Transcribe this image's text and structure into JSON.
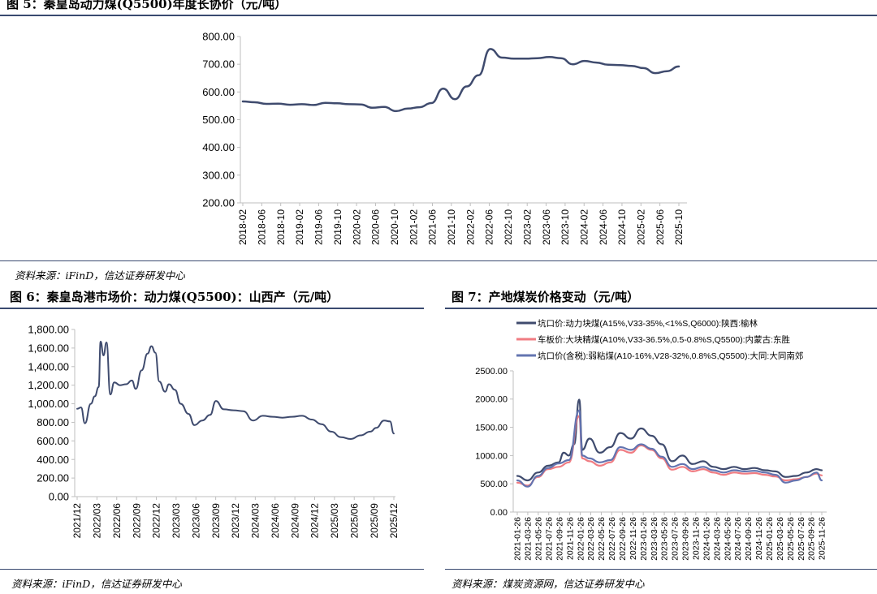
{
  "figure5": {
    "title": "图 5：秦皇岛动力煤(Q5500)年度长协价（元/吨）",
    "source": "资料来源：iFinD，信达证券研发中心"
  },
  "figure6": {
    "title": "图 6：秦皇岛港市场价：动力煤(Q5500)：山西产（元/吨）",
    "source": "资料来源：iFinD，信达证券研发中心"
  },
  "figure7": {
    "title": "图 7：产地煤炭价格变动（元/吨）",
    "source": "资料来源：煤炭资源网，信达证券研发中心"
  },
  "colors": {
    "navy": "#3f4b6e",
    "red": "#f07c82",
    "blue": "#6374b0",
    "axis": "#bfbfbf",
    "rule": "#3a4a70"
  },
  "chart_data": [
    {
      "id": "fig5",
      "type": "line",
      "title": "",
      "xlabel": "",
      "ylabel": "",
      "ylim": [
        200,
        800
      ],
      "y_ticks": [
        "800.00",
        "700.00",
        "600.00",
        "500.00",
        "400.00",
        "300.00",
        "200.00"
      ],
      "x_ticks": [
        "2018-02",
        "2018-06",
        "2018-10",
        "2019-02",
        "2019-06",
        "2019-10",
        "2020-02",
        "2020-06",
        "2020-10",
        "2021-02",
        "2021-06",
        "2021-10",
        "2022-02",
        "2022-06",
        "2022-10",
        "2023-02",
        "2023-06",
        "2023-10",
        "2024-02",
        "2024-06",
        "2024-10",
        "2025-02",
        "2025-06",
        "2025-10"
      ],
      "grid": false,
      "series": [
        {
          "color": "#3f4b6e",
          "points": [
            [
              0,
              566
            ],
            [
              1,
              563
            ],
            [
              2,
              557
            ],
            [
              3,
              558
            ],
            [
              4,
              554
            ],
            [
              5,
              556
            ],
            [
              6,
              553
            ],
            [
              7,
              561
            ],
            [
              8,
              559
            ],
            [
              9,
              556
            ],
            [
              10,
              555
            ],
            [
              11,
              543
            ],
            [
              12,
              546
            ],
            [
              13,
              531
            ],
            [
              14,
              540
            ],
            [
              15,
              545
            ],
            [
              16,
              560
            ],
            [
              17,
              612
            ],
            [
              18,
              574
            ],
            [
              19,
              620
            ],
            [
              20,
              660
            ],
            [
              21,
              755
            ],
            [
              22,
              724
            ],
            [
              23,
              720
            ],
            [
              24,
              720
            ],
            [
              25,
              722
            ],
            [
              26,
              726
            ],
            [
              27,
              722
            ],
            [
              28,
              700
            ],
            [
              29,
              712
            ],
            [
              30,
              706
            ],
            [
              31,
              698
            ],
            [
              32,
              697
            ],
            [
              33,
              694
            ],
            [
              34,
              686
            ],
            [
              35,
              668
            ],
            [
              36,
              675
            ],
            [
              37,
              692
            ]
          ]
        }
      ]
    },
    {
      "id": "fig6",
      "type": "line",
      "title": "",
      "xlabel": "",
      "ylabel": "",
      "ylim": [
        0,
        1800
      ],
      "y_ticks": [
        "1,800.00",
        "1,600.00",
        "1,400.00",
        "1,200.00",
        "1,000.00",
        "800.00",
        "600.00",
        "400.00",
        "200.00",
        "0.00"
      ],
      "x_ticks": [
        "2021/12",
        "2022/03",
        "2022/06",
        "2022/09",
        "2022/12",
        "2023/03",
        "2023/06",
        "2023/09",
        "2023/12",
        "2024/03",
        "2024/06",
        "2024/09",
        "2024/12",
        "2025/03",
        "2025/06",
        "2025/09",
        "2025/12"
      ],
      "grid": false,
      "series": [
        {
          "color": "#3f4b6e",
          "points": [
            [
              0,
              945
            ],
            [
              0.2,
              960
            ],
            [
              0.4,
              790
            ],
            [
              0.7,
              1000
            ],
            [
              0.9,
              1080
            ],
            [
              1.1,
              1180
            ],
            [
              1.2,
              1670
            ],
            [
              1.35,
              1520
            ],
            [
              1.5,
              1660
            ],
            [
              1.7,
              1100
            ],
            [
              1.9,
              1230
            ],
            [
              2.2,
              1200
            ],
            [
              2.5,
              1210
            ],
            [
              2.8,
              1250
            ],
            [
              3.0,
              1160
            ],
            [
              3.3,
              1360
            ],
            [
              3.6,
              1540
            ],
            [
              3.8,
              1620
            ],
            [
              4.0,
              1550
            ],
            [
              4.2,
              1240
            ],
            [
              4.5,
              1130
            ],
            [
              4.7,
              1210
            ],
            [
              5.0,
              1150
            ],
            [
              5.3,
              1000
            ],
            [
              5.7,
              890
            ],
            [
              6.0,
              770
            ],
            [
              6.4,
              820
            ],
            [
              6.8,
              880
            ],
            [
              7.1,
              1030
            ],
            [
              7.5,
              940
            ],
            [
              8.0,
              930
            ],
            [
              8.5,
              920
            ],
            [
              9.0,
              820
            ],
            [
              9.5,
              870
            ],
            [
              10.0,
              860
            ],
            [
              10.5,
              850
            ],
            [
              11.0,
              860
            ],
            [
              11.5,
              870
            ],
            [
              12.0,
              830
            ],
            [
              12.5,
              780
            ],
            [
              13.0,
              700
            ],
            [
              13.5,
              640
            ],
            [
              14.0,
              620
            ],
            [
              14.5,
              660
            ],
            [
              15.0,
              700
            ],
            [
              15.3,
              740
            ],
            [
              15.7,
              820
            ],
            [
              16.0,
              810
            ],
            [
              16.2,
              680
            ]
          ]
        }
      ]
    },
    {
      "id": "fig7",
      "type": "line",
      "title": "",
      "xlabel": "",
      "ylabel": "",
      "ylim": [
        0,
        2500
      ],
      "y_ticks": [
        "2500.00",
        "2000.00",
        "1500.00",
        "1000.00",
        "500.00",
        "0.00"
      ],
      "x_ticks": [
        "2021-01-26",
        "2021-03-26",
        "2021-05-26",
        "2021-07-26",
        "2021-09-26",
        "2021-11-26",
        "2022-01-26",
        "2022-03-26",
        "2022-05-26",
        "2022-07-26",
        "2022-09-26",
        "2022-11-26",
        "2023-01-26",
        "2023-03-26",
        "2023-05-26",
        "2023-07-26",
        "2023-09-26",
        "2023-11-26",
        "2024-01-26",
        "2024-03-26",
        "2024-05-26",
        "2024-07-26",
        "2024-09-26",
        "2024-11-26",
        "2025-01-26",
        "2025-03-26",
        "2025-05-26",
        "2025-07-26",
        "2025-09-26",
        "2025-11-26"
      ],
      "legend_position": "top",
      "grid": false,
      "series": [
        {
          "name": "坑口价:动力块煤(A15%,V33-35%,<1%S,Q6000):陕西:榆林",
          "color": "#3f4b6e",
          "points": [
            [
              0,
              640
            ],
            [
              1,
              560
            ],
            [
              2,
              700
            ],
            [
              3,
              820
            ],
            [
              4,
              880
            ],
            [
              4.5,
              1050
            ],
            [
              5,
              1000
            ],
            [
              5.5,
              1200
            ],
            [
              6,
              1990
            ],
            [
              6.3,
              1100
            ],
            [
              7,
              1300
            ],
            [
              8,
              1050
            ],
            [
              9,
              1150
            ],
            [
              10,
              1400
            ],
            [
              11,
              1300
            ],
            [
              12,
              1480
            ],
            [
              13,
              1350
            ],
            [
              14,
              1200
            ],
            [
              15,
              900
            ],
            [
              16,
              1000
            ],
            [
              17,
              850
            ],
            [
              18,
              900
            ],
            [
              19,
              800
            ],
            [
              20,
              760
            ],
            [
              21,
              800
            ],
            [
              22,
              760
            ],
            [
              23,
              780
            ],
            [
              24,
              740
            ],
            [
              25,
              720
            ],
            [
              26,
              620
            ],
            [
              27,
              640
            ],
            [
              28,
              700
            ],
            [
              29,
              760
            ],
            [
              29.5,
              740
            ]
          ]
        },
        {
          "name": "车板价:大块精煤(A10%,V33-36.5%,0.5-0.8%S,Q5500):内蒙古:东胜",
          "color": "#f07c82",
          "points": [
            [
              0,
              520
            ],
            [
              1,
              470
            ],
            [
              2,
              620
            ],
            [
              3,
              760
            ],
            [
              4,
              800
            ],
            [
              5,
              880
            ],
            [
              6,
              1700
            ],
            [
              6.3,
              950
            ],
            [
              7,
              900
            ],
            [
              8,
              820
            ],
            [
              9,
              880
            ],
            [
              10,
              1100
            ],
            [
              11,
              1050
            ],
            [
              12,
              1180
            ],
            [
              13,
              1100
            ],
            [
              14,
              950
            ],
            [
              15,
              750
            ],
            [
              16,
              800
            ],
            [
              17,
              720
            ],
            [
              18,
              760
            ],
            [
              19,
              700
            ],
            [
              20,
              660
            ],
            [
              21,
              700
            ],
            [
              22,
              680
            ],
            [
              23,
              690
            ],
            [
              24,
              660
            ],
            [
              25,
              630
            ],
            [
              26,
              560
            ],
            [
              27,
              580
            ],
            [
              28,
              620
            ],
            [
              29,
              680
            ],
            [
              29.5,
              650
            ]
          ]
        },
        {
          "name": "坑口价(含税):弱粘煤(A10-16%,V28-32%,0.8%S,Q5500):大同:大同南郊",
          "color": "#6374b0",
          "points": [
            [
              0,
              560
            ],
            [
              1,
              450
            ],
            [
              2,
              640
            ],
            [
              3,
              780
            ],
            [
              4,
              860
            ],
            [
              5,
              920
            ],
            [
              6,
              1800
            ],
            [
              6.3,
              1000
            ],
            [
              7,
              950
            ],
            [
              8,
              880
            ],
            [
              9,
              920
            ],
            [
              10,
              1150
            ],
            [
              11,
              1100
            ],
            [
              12,
              1200
            ],
            [
              13,
              1120
            ],
            [
              14,
              980
            ],
            [
              15,
              800
            ],
            [
              16,
              850
            ],
            [
              17,
              760
            ],
            [
              18,
              800
            ],
            [
              19,
              740
            ],
            [
              20,
              700
            ],
            [
              21,
              740
            ],
            [
              22,
              720
            ],
            [
              23,
              730
            ],
            [
              24,
              700
            ],
            [
              25,
              660
            ],
            [
              26,
              520
            ],
            [
              27,
              560
            ],
            [
              28,
              620
            ],
            [
              29,
              700
            ],
            [
              29.5,
              560
            ]
          ]
        }
      ]
    }
  ]
}
